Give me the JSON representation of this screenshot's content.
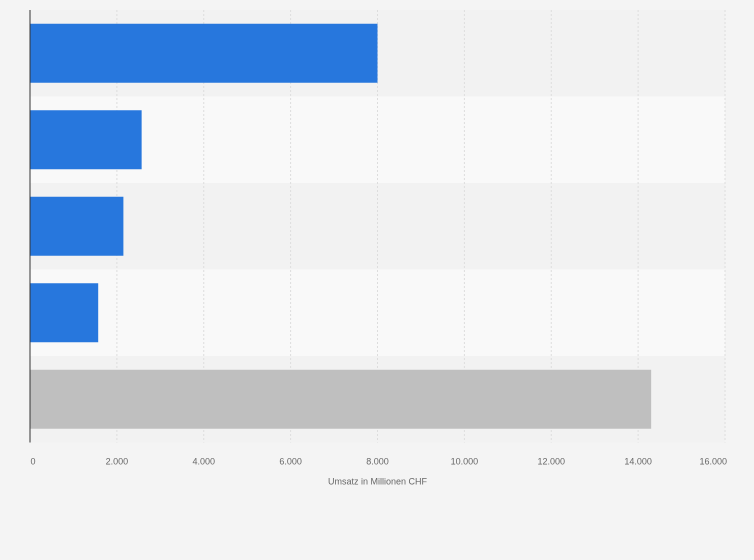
{
  "chart_data": {
    "type": "bar",
    "orientation": "horizontal",
    "categories": [
      "",
      "",
      "",
      "",
      ""
    ],
    "values": [
      8000,
      2570,
      2150,
      1570,
      14300
    ],
    "bar_colors": [
      "#2777dd",
      "#2777dd",
      "#2777dd",
      "#2777dd",
      "#bfbfbf"
    ],
    "xlabel": "Umsatz in Millionen CHF",
    "ylabel": "",
    "xlim": [
      0,
      16000
    ],
    "x_ticks": [
      0,
      2000,
      4000,
      6000,
      8000,
      10000,
      12000,
      14000,
      16000
    ],
    "x_tick_labels": [
      "0",
      "2.000",
      "4.000",
      "6.000",
      "8.000",
      "10.000",
      "12.000",
      "14.000",
      "16.000"
    ],
    "grid": true,
    "legend": "none",
    "colors": {
      "background": "#f4f4f4",
      "band_dark": "#f2f2f2",
      "band_light": "#f9f9f9",
      "grid": "#dddddd",
      "axis": "#333333"
    }
  }
}
